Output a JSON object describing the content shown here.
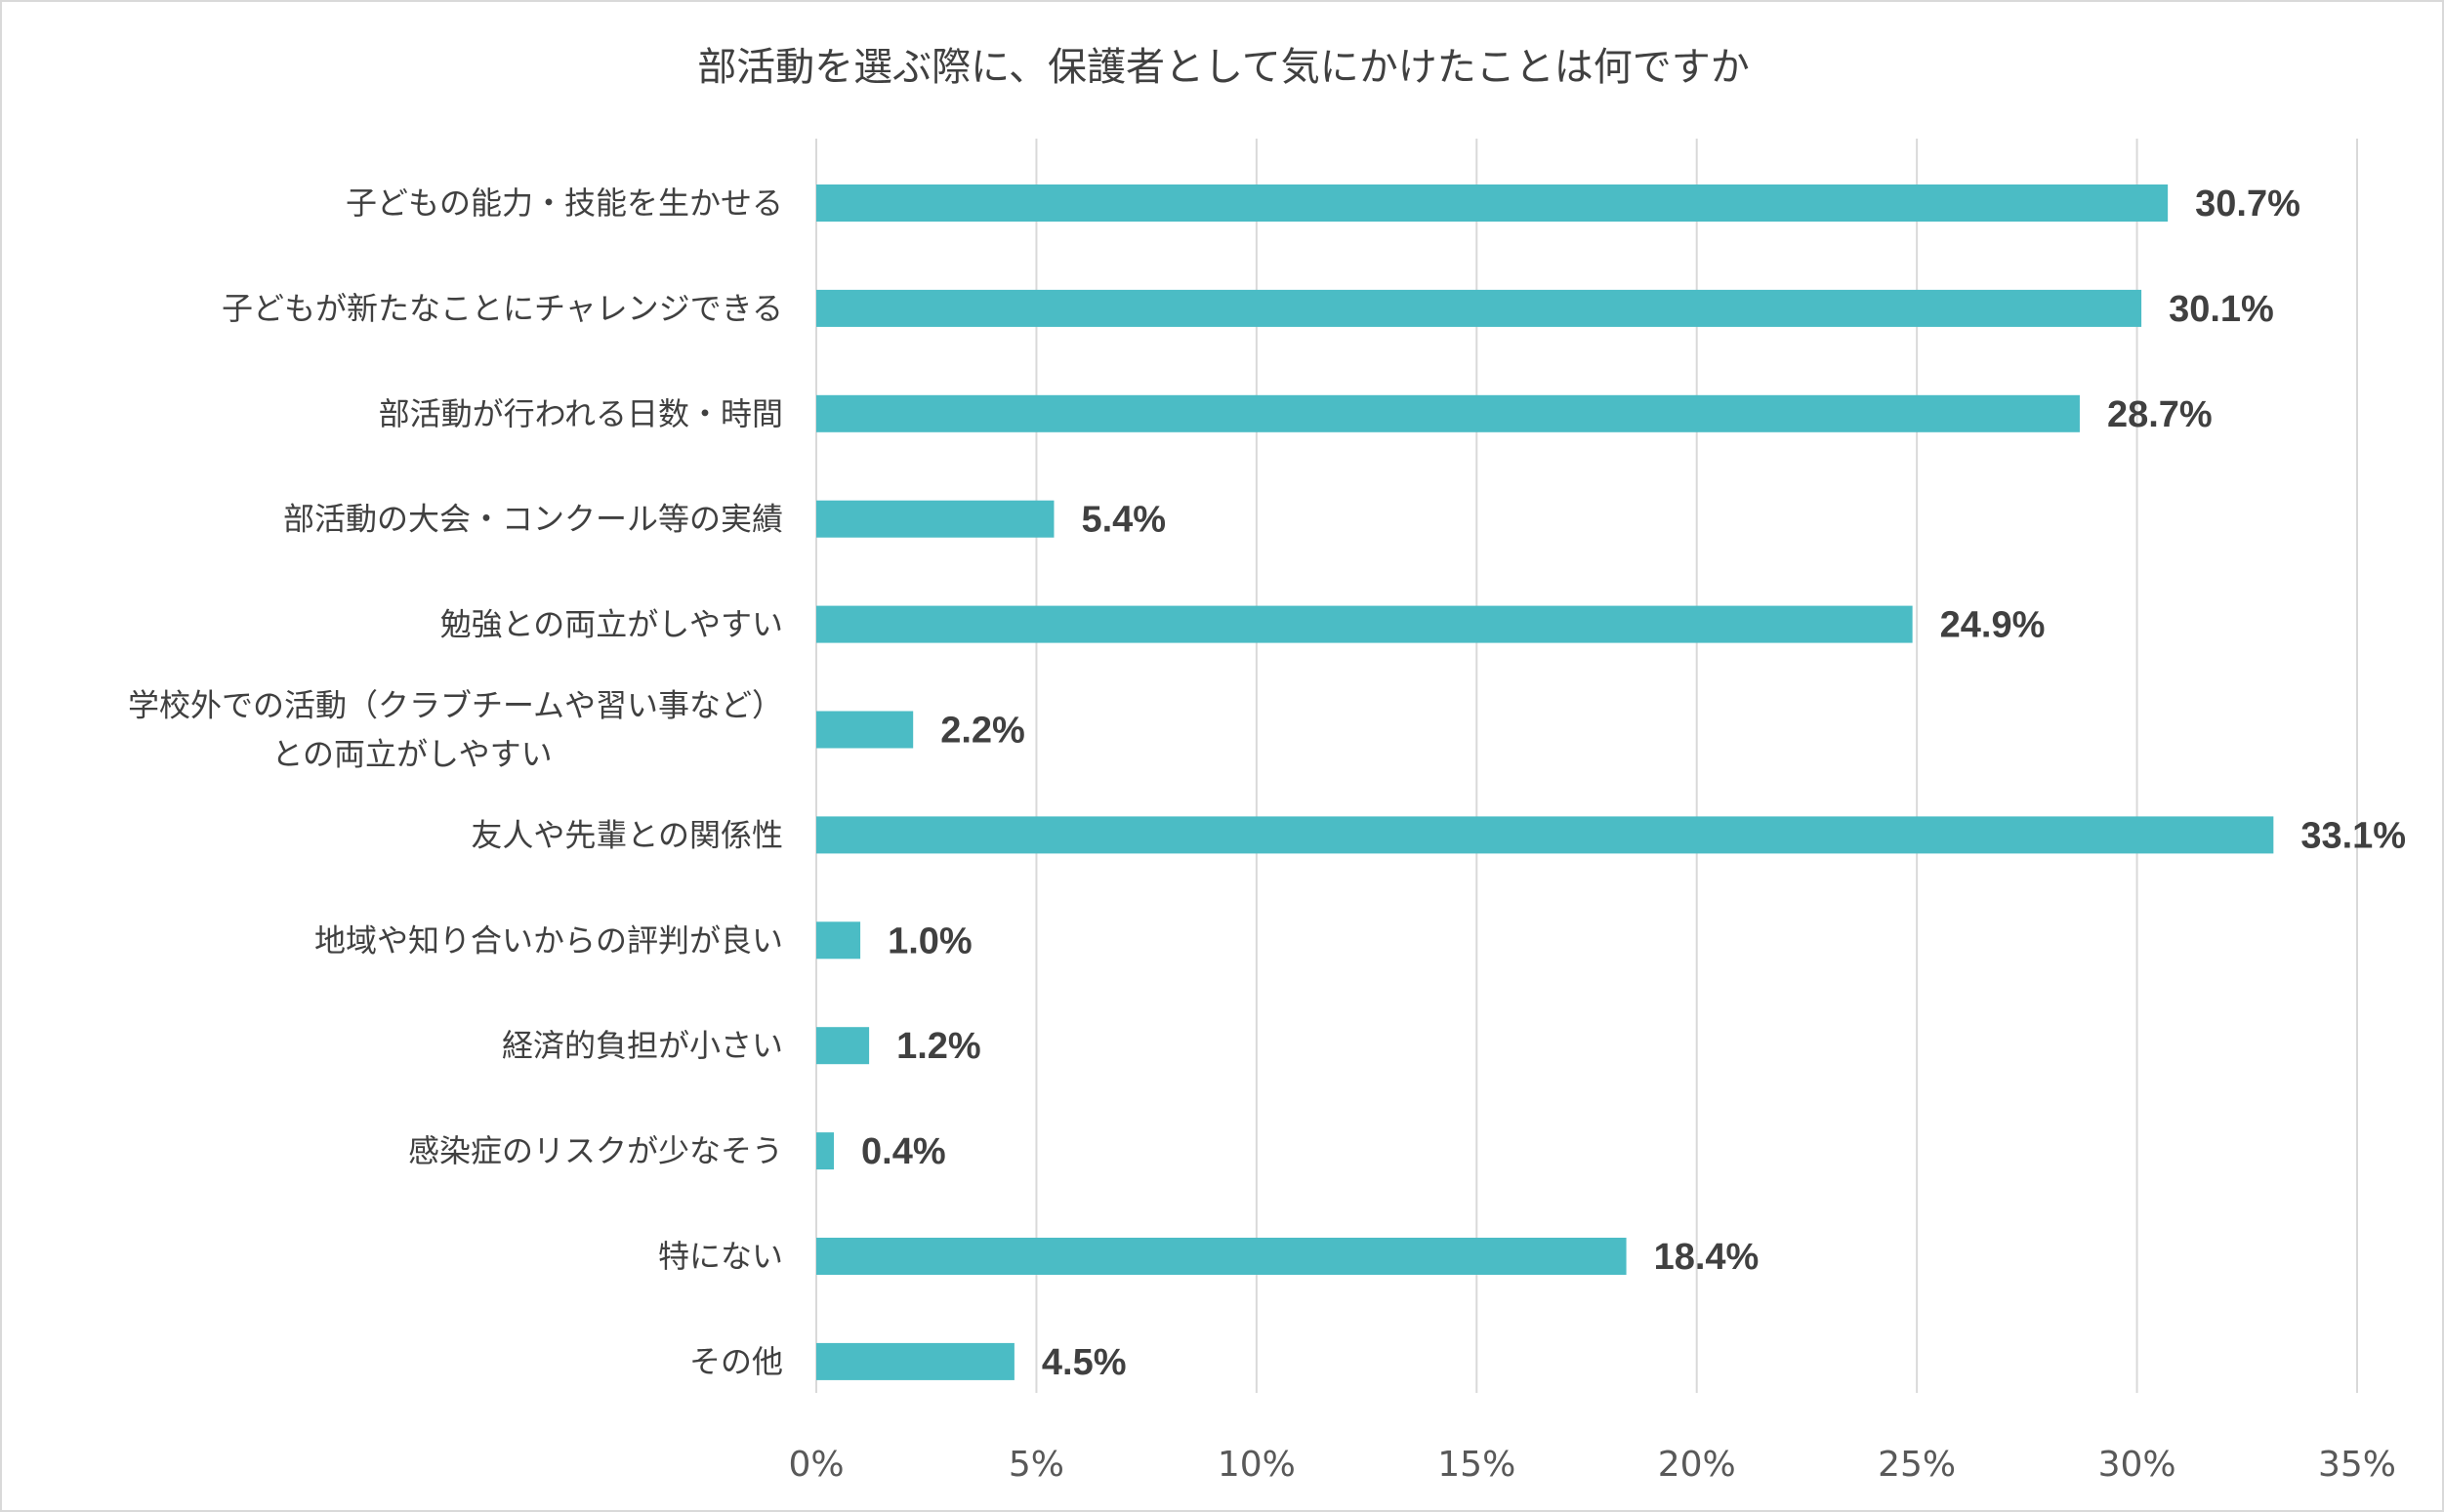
{
  "chart_data": {
    "type": "bar",
    "orientation": "horizontal",
    "title": "部活動を選ぶ際に、保護者として気にかけたことは何ですか",
    "xlabel": "",
    "ylabel": "",
    "xlim": [
      0,
      35
    ],
    "x_ticks": [
      {
        "value": 0,
        "label": "0%"
      },
      {
        "value": 5,
        "label": "5%"
      },
      {
        "value": 10,
        "label": "10%"
      },
      {
        "value": 15,
        "label": "15%"
      },
      {
        "value": 20,
        "label": "20%"
      },
      {
        "value": 25,
        "label": "25%"
      },
      {
        "value": 30,
        "label": "30%"
      },
      {
        "value": 35,
        "label": "35%"
      }
    ],
    "grid": "vertical",
    "legend": "none",
    "bar_color": "#4bbcc5",
    "categories": [
      [
        "子どもの能力・技能を生かせる"
      ],
      [
        "子どもが新たなことにチャレンジできる"
      ],
      [
        "部活動が行われる日数・時間"
      ],
      [
        "部活動の大会・コンクール等の実績"
      ],
      [
        "勉強との両立がしやすい"
      ],
      [
        "学校外での活動（クラブチームや習い事など）",
        "との両立がしやすい"
      ],
      [
        "友人や先輩との関係性"
      ],
      [
        "地域や知り合いからの評判が良い"
      ],
      [
        "経済的負担が小さい"
      ],
      [
        "感染症のリスクが少なそう"
      ],
      [
        "特にない"
      ],
      [
        "その他"
      ]
    ],
    "values": [
      30.7,
      30.1,
      28.7,
      5.4,
      24.9,
      2.2,
      33.1,
      1.0,
      1.2,
      0.4,
      18.4,
      4.5
    ],
    "data_labels": [
      "30.7%",
      "30.1%",
      "28.7%",
      "5.4%",
      "24.9%",
      "2.2%",
      "33.1%",
      "1.0%",
      "1.2%",
      "0.4%",
      "18.4%",
      "4.5%"
    ]
  }
}
